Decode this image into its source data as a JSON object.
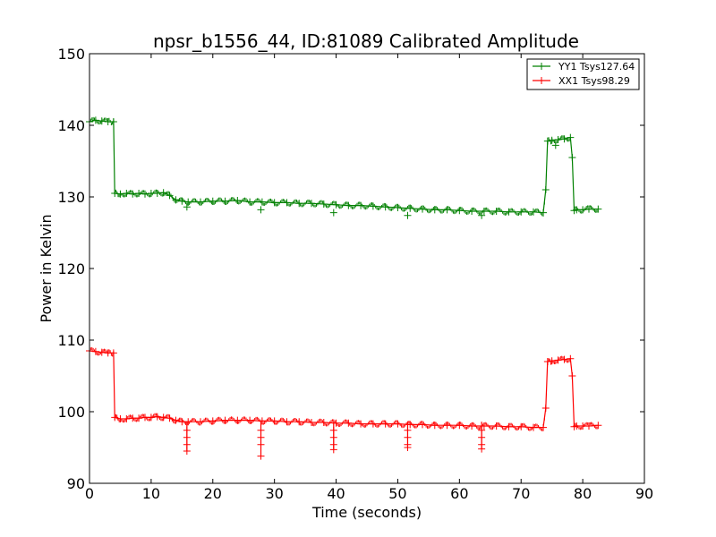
{
  "chart_data": {
    "type": "line",
    "title": "npsr_b1556_44, ID:81089 Calibrated Amplitude",
    "xlabel": "Time (seconds)",
    "ylabel": "Power in Kelvin",
    "xlim": [
      0,
      90
    ],
    "ylim": [
      90,
      150
    ],
    "xticks": [
      "0",
      "10",
      "20",
      "30",
      "40",
      "50",
      "60",
      "70",
      "80",
      "90"
    ],
    "yticks": [
      "90",
      "100",
      "110",
      "120",
      "130",
      "140",
      "150"
    ],
    "legend_position": "top-right",
    "grid": false,
    "marker": "+",
    "series": [
      {
        "name": "YY1 Tsys127.64",
        "color": "#008000",
        "x": [
          0,
          1,
          2,
          3,
          3.9,
          4.1,
          5,
          6,
          7,
          8,
          9,
          10,
          11,
          12,
          13,
          14,
          15,
          16,
          18,
          20,
          22,
          24,
          26,
          28,
          30,
          32,
          34,
          36,
          38,
          40,
          42,
          44,
          46,
          48,
          50,
          52,
          54,
          56,
          58,
          60,
          62,
          64,
          66,
          68,
          70,
          72,
          73.6,
          74.0,
          74.3,
          75,
          76,
          77,
          78.0,
          78.3,
          78.6,
          79,
          80,
          81,
          82.5
        ],
        "y": [
          140.5,
          140.7,
          140.6,
          140.5,
          140.5,
          130.5,
          130.4,
          130.5,
          130.4,
          130.5,
          130.4,
          130.5,
          130.5,
          130.6,
          130.2,
          129.6,
          129.4,
          129.3,
          129.3,
          129.4,
          129.4,
          129.5,
          129.3,
          129.3,
          129.2,
          129.2,
          129.1,
          129.1,
          129.0,
          128.9,
          128.8,
          128.8,
          128.7,
          128.6,
          128.5,
          128.4,
          128.3,
          128.2,
          128.2,
          128.1,
          128.0,
          128.0,
          128.0,
          127.9,
          127.9,
          127.9,
          127.8,
          131.0,
          137.8,
          137.9,
          138.0,
          138.1,
          138.3,
          135.5,
          128.1,
          128.2,
          128.2,
          128.3,
          128.3
        ]
      },
      {
        "name": "XX1 Tsys98.29",
        "color": "#ff0000",
        "x": [
          0,
          1,
          2,
          3,
          3.9,
          4.1,
          5,
          6,
          7,
          8,
          9,
          10,
          11,
          12,
          13,
          14,
          15,
          16,
          18,
          20,
          22,
          24,
          26,
          28,
          30,
          32,
          34,
          36,
          38,
          40,
          42,
          44,
          46,
          48,
          50,
          52,
          54,
          56,
          58,
          60,
          62,
          64,
          66,
          68,
          70,
          72,
          73.6,
          74.0,
          74.3,
          75,
          76,
          77,
          78.0,
          78.3,
          78.6,
          79,
          80,
          81,
          82.5
        ],
        "y": [
          108.5,
          108.4,
          108.3,
          108.2,
          108.2,
          99.2,
          99.0,
          99.0,
          99.1,
          99.1,
          99.2,
          99.2,
          99.3,
          99.2,
          99.1,
          98.8,
          98.6,
          98.6,
          98.6,
          98.7,
          98.8,
          98.8,
          98.8,
          98.7,
          98.7,
          98.6,
          98.6,
          98.5,
          98.5,
          98.4,
          98.4,
          98.3,
          98.3,
          98.3,
          98.3,
          98.2,
          98.2,
          98.1,
          98.1,
          98.1,
          98.0,
          98.0,
          98.0,
          97.9,
          97.9,
          97.8,
          97.8,
          100.5,
          107.0,
          107.1,
          107.2,
          107.3,
          107.4,
          105.0,
          97.9,
          98.0,
          98.0,
          98.0,
          98.1
        ]
      }
    ],
    "dips": {
      "x": [
        15.8,
        27.8,
        39.6,
        51.6,
        63.6
      ],
      "y_min": [
        94.5,
        93.8,
        94.7,
        95.0,
        94.8
      ]
    }
  }
}
